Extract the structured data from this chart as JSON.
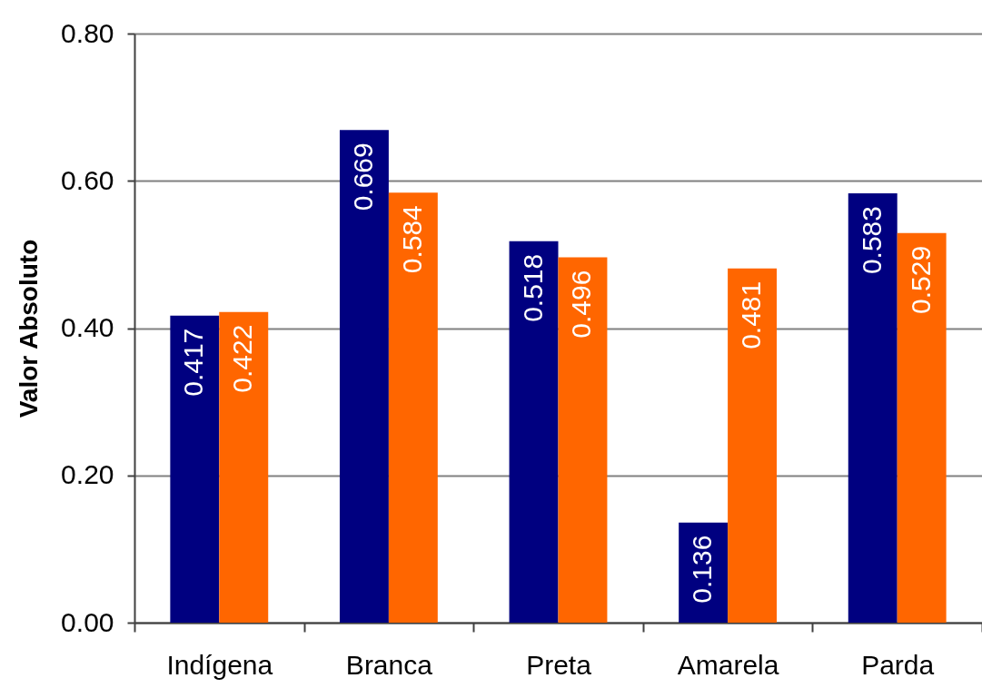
{
  "chart_data": {
    "type": "bar",
    "ylabel": "Valor Absoluto",
    "categories": [
      "Indígena",
      "Branca",
      "Preta",
      "Amarela",
      "Parda"
    ],
    "series": [
      {
        "color": "#000080",
        "values": [
          0.417,
          0.669,
          0.518,
          0.136,
          0.583
        ]
      },
      {
        "color": "#ff6600",
        "values": [
          0.422,
          0.584,
          0.496,
          0.481,
          0.529
        ]
      }
    ],
    "ylim": [
      0,
      0.8
    ],
    "yticks": [
      {
        "value": 0,
        "label": "0.00"
      },
      {
        "value": 0.2,
        "label": "0.20"
      },
      {
        "value": 0.4,
        "label": "0.40"
      },
      {
        "value": 0.6,
        "label": "0.60"
      },
      {
        "value": 0.8,
        "label": "0.80"
      }
    ],
    "grid": "y",
    "data_labels": true
  }
}
